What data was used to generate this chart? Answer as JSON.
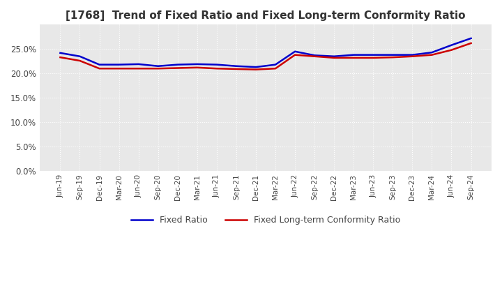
{
  "title": "[1768]  Trend of Fixed Ratio and Fixed Long-term Conformity Ratio",
  "x_labels": [
    "Jun-19",
    "Sep-19",
    "Dec-19",
    "Mar-20",
    "Jun-20",
    "Sep-20",
    "Dec-20",
    "Mar-21",
    "Jun-21",
    "Sep-21",
    "Dec-21",
    "Mar-22",
    "Jun-22",
    "Sep-22",
    "Dec-22",
    "Mar-23",
    "Jun-23",
    "Sep-23",
    "Dec-23",
    "Mar-24",
    "Jun-24",
    "Sep-24"
  ],
  "fixed_ratio": [
    24.2,
    23.5,
    21.8,
    21.8,
    21.9,
    21.5,
    21.8,
    21.9,
    21.8,
    21.5,
    21.3,
    21.8,
    24.5,
    23.7,
    23.5,
    23.8,
    23.8,
    23.8,
    23.8,
    24.3,
    25.8,
    27.2
  ],
  "fixed_lt_conformity": [
    23.3,
    22.6,
    21.0,
    21.0,
    21.0,
    21.0,
    21.1,
    21.2,
    21.0,
    20.9,
    20.8,
    21.0,
    23.8,
    23.5,
    23.2,
    23.2,
    23.2,
    23.3,
    23.5,
    23.8,
    24.8,
    26.2
  ],
  "fixed_ratio_color": "#0000cc",
  "fixed_lt_conformity_color": "#cc0000",
  "ylim": [
    0,
    30
  ],
  "yticks": [
    0,
    5,
    10,
    15,
    20,
    25
  ],
  "plot_bg_color": "#e8e8e8",
  "fig_bg_color": "#ffffff",
  "grid_color": "#ffffff",
  "title_fontsize": 11,
  "title_color": "#333333"
}
